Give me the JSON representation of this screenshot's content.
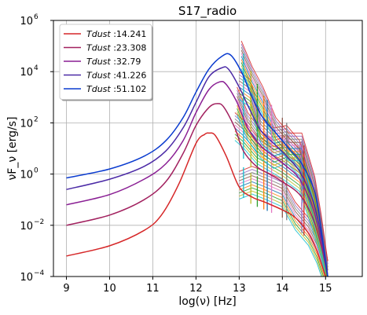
{
  "chart_data": {
    "type": "line",
    "title": "S17_radio",
    "xlabel": "log(ν) [Hz]",
    "ylabel": "νF_ν [erg/s]",
    "xlim": [
      8.7,
      15.85
    ],
    "ylim_log10": [
      -4,
      6
    ],
    "y_scale": "log",
    "grid": true,
    "legend_position": "top-left",
    "x_ticks": [
      "9",
      "10",
      "11",
      "12",
      "13",
      "14",
      "15"
    ],
    "x_tick_values": [
      9,
      10,
      11,
      12,
      13,
      14,
      15
    ],
    "y_tick_exponents": [
      -4,
      -2,
      0,
      2,
      4,
      6
    ],
    "y_tick_labels": [
      "10",
      "10",
      "10",
      "10",
      "10",
      "10"
    ],
    "y_tick_superscripts": [
      "−4",
      "−2",
      "0",
      "2",
      "4",
      "6"
    ],
    "legend_prefix": "Tdust",
    "series": [
      {
        "name": "Tdust :14.241",
        "label_value": ":14.241",
        "color": "#d62728",
        "log_x": [
          9.0,
          10.0,
          10.8,
          11.2,
          11.6,
          12.0,
          12.2,
          12.3,
          12.45,
          12.7,
          13.0,
          13.3,
          13.6,
          14.0,
          14.3,
          14.6,
          14.8,
          15.0
        ],
        "log_y": [
          -3.2,
          -2.8,
          -2.2,
          -1.6,
          -0.4,
          1.2,
          1.55,
          1.6,
          1.5,
          0.7,
          -0.5,
          -0.9,
          -1.1,
          -1.4,
          -1.7,
          -2.3,
          -3.0,
          -4.0
        ]
      },
      {
        "name": "Tdust :23.308",
        "label_value": ":23.308",
        "color": "#a2215f",
        "log_x": [
          9.0,
          10.0,
          10.8,
          11.3,
          11.7,
          12.0,
          12.3,
          12.5,
          12.65,
          12.9,
          13.1,
          13.4,
          13.7,
          14.0,
          14.4,
          14.7,
          14.9,
          15.05
        ],
        "log_y": [
          -2.0,
          -1.6,
          -1.0,
          -0.3,
          0.8,
          1.9,
          2.6,
          2.75,
          2.6,
          1.8,
          0.9,
          0.3,
          0.0,
          -0.3,
          -0.8,
          -1.7,
          -2.8,
          -4.0
        ]
      },
      {
        "name": "Tdust :32.79",
        "label_value": ":32.79",
        "color": "#8a1f94",
        "log_x": [
          9.0,
          10.0,
          10.8,
          11.3,
          11.7,
          12.0,
          12.3,
          12.55,
          12.7,
          12.95,
          13.2,
          13.5,
          13.8,
          14.1,
          14.4,
          14.7,
          14.9,
          15.05
        ],
        "log_y": [
          -1.2,
          -0.8,
          -0.2,
          0.4,
          1.3,
          2.4,
          3.3,
          3.6,
          3.5,
          2.8,
          1.8,
          1.1,
          0.7,
          0.3,
          -0.2,
          -1.3,
          -2.6,
          -4.0
        ]
      },
      {
        "name": "Tdust :41.226",
        "label_value": ":41.226",
        "color": "#4b2aa6",
        "log_x": [
          9.0,
          10.0,
          10.8,
          11.3,
          11.7,
          12.0,
          12.3,
          12.6,
          12.75,
          13.0,
          13.25,
          13.5,
          13.8,
          14.1,
          14.4,
          14.7,
          14.9,
          15.05
        ],
        "log_y": [
          -0.6,
          -0.2,
          0.3,
          0.9,
          1.8,
          2.8,
          3.8,
          4.15,
          4.1,
          3.4,
          2.5,
          1.7,
          1.2,
          0.7,
          0.1,
          -1.0,
          -2.4,
          -4.0
        ]
      },
      {
        "name": "Tdust :51.102",
        "label_value": ":51.102",
        "color": "#0a3bcf",
        "log_x": [
          9.0,
          10.0,
          10.8,
          11.3,
          11.7,
          12.0,
          12.3,
          12.6,
          12.8,
          13.05,
          13.3,
          13.55,
          13.85,
          14.15,
          14.45,
          14.75,
          14.9,
          15.05
        ],
        "log_y": [
          -0.15,
          0.2,
          0.7,
          1.3,
          2.2,
          3.2,
          4.1,
          4.6,
          4.65,
          4.0,
          3.0,
          2.2,
          1.6,
          1.0,
          0.4,
          -0.7,
          -2.2,
          -4.0
        ]
      }
    ],
    "pah_feature_lines": {
      "colors": [
        "#17becf",
        "#bcbd22",
        "#2ca02c",
        "#ff7f0e",
        "#1f77b4",
        "#e377c2",
        "#8c564b",
        "#7f7f7f",
        "#9467bd",
        "#d62728"
      ],
      "peaks_log_x": [
        13.1,
        13.27,
        13.42,
        13.57,
        13.65,
        13.75,
        14.0,
        14.1,
        14.45,
        14.5
      ]
    }
  }
}
